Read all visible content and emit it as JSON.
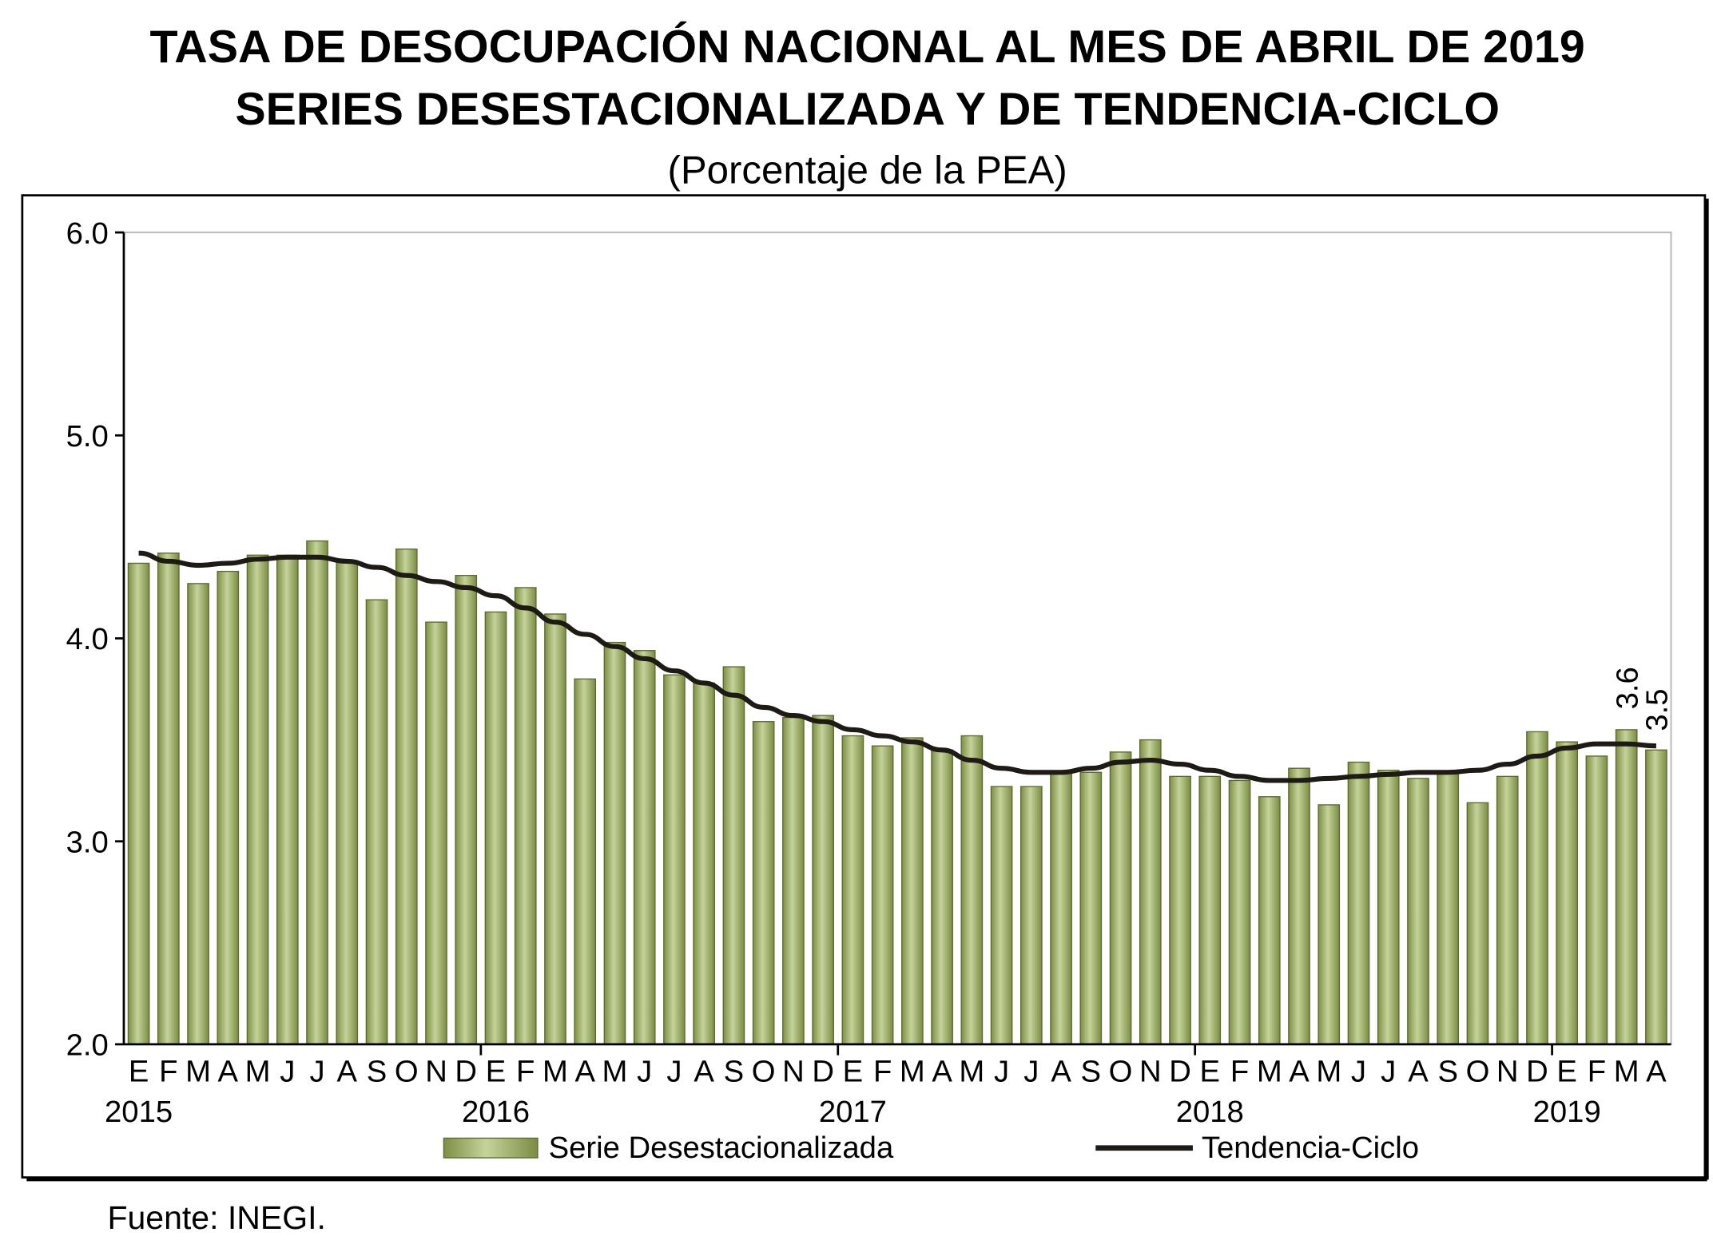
{
  "chart_data": {
    "type": "bar",
    "title_line1": "TASA DE DESOCUPACIÓN NACIONAL AL MES DE ABRIL DE 2019",
    "title_line2": "SERIES DESESTACIONALIZADA Y DE TENDENCIA-CICLO",
    "subtitle": "(Porcentaje de la PEA)",
    "ylim": [
      2.0,
      6.0
    ],
    "yticks": [
      "2.0",
      "3.0",
      "4.0",
      "5.0",
      "6.0"
    ],
    "grid": false,
    "legend_position": "bottom",
    "month_labels": [
      "E",
      "F",
      "M",
      "A",
      "M",
      "J",
      "J",
      "A",
      "S",
      "O",
      "N",
      "D",
      "E",
      "F",
      "M",
      "A",
      "M",
      "J",
      "J",
      "A",
      "S",
      "O",
      "N",
      "D",
      "E",
      "F",
      "M",
      "A",
      "M",
      "J",
      "J",
      "A",
      "S",
      "O",
      "N",
      "D",
      "E",
      "F",
      "M",
      "A",
      "M",
      "J",
      "J",
      "A",
      "S",
      "O",
      "N",
      "D",
      "E",
      "F",
      "M",
      "A"
    ],
    "year_labels": [
      "2015",
      "2016",
      "2017",
      "2018",
      "2019"
    ],
    "series": [
      {
        "name": "Serie Desestacionalizada",
        "kind": "bar",
        "color": "#9aab5e",
        "values": [
          4.37,
          4.42,
          4.27,
          4.33,
          4.41,
          4.41,
          4.48,
          4.38,
          4.19,
          4.44,
          4.08,
          4.31,
          4.13,
          4.25,
          4.12,
          3.8,
          3.98,
          3.94,
          3.82,
          3.78,
          3.86,
          3.59,
          3.61,
          3.62,
          3.52,
          3.47,
          3.51,
          3.45,
          3.52,
          3.27,
          3.27,
          3.34,
          3.34,
          3.44,
          3.5,
          3.32,
          3.32,
          3.3,
          3.22,
          3.36,
          3.18,
          3.39,
          3.35,
          3.31,
          3.34,
          3.19,
          3.32,
          3.54,
          3.49,
          3.42,
          3.55,
          3.45
        ]
      },
      {
        "name": "Tendencia-Ciclo",
        "kind": "line",
        "color": "#1e1a14",
        "values": [
          4.42,
          4.38,
          4.36,
          4.37,
          4.39,
          4.4,
          4.4,
          4.38,
          4.35,
          4.31,
          4.28,
          4.25,
          4.21,
          4.15,
          4.08,
          4.02,
          3.96,
          3.9,
          3.84,
          3.78,
          3.72,
          3.66,
          3.62,
          3.59,
          3.55,
          3.52,
          3.49,
          3.45,
          3.4,
          3.36,
          3.34,
          3.34,
          3.36,
          3.39,
          3.4,
          3.38,
          3.35,
          3.32,
          3.3,
          3.3,
          3.31,
          3.32,
          3.33,
          3.34,
          3.34,
          3.35,
          3.38,
          3.42,
          3.46,
          3.48,
          3.48,
          3.47
        ]
      }
    ],
    "annotations": [
      {
        "text": "3.6",
        "month_index": 50
      },
      {
        "text": "3.5",
        "month_index": 51
      }
    ]
  },
  "footer": "Fuente: INEGI."
}
